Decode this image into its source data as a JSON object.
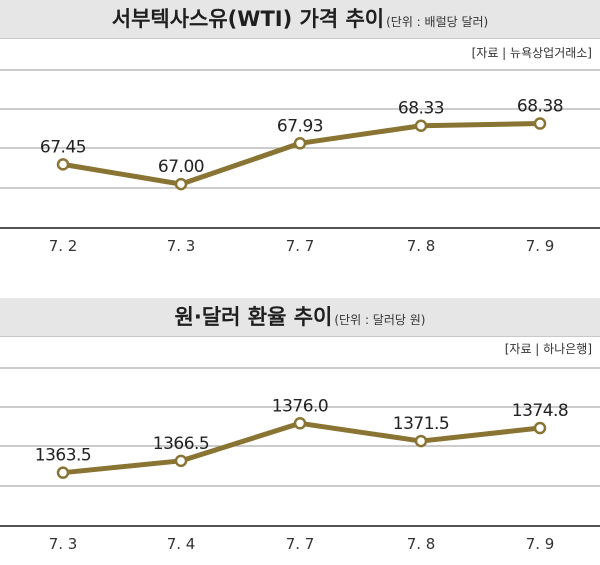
{
  "chart_data": [
    {
      "type": "line",
      "title": "서부텍사스유(WTI) 가격 추이",
      "subtitle": "(단위 : 배럴당 달러)",
      "source": "[자료 | 뉴욕상업거래소]",
      "categories": [
        "7. 2",
        "7. 3",
        "7. 7",
        "7. 8",
        "7. 9"
      ],
      "values": [
        67.45,
        67.0,
        67.93,
        68.33,
        68.38
      ],
      "labels": [
        "67.45",
        "67.00",
        "67.93",
        "68.33",
        "68.38"
      ],
      "ylim": [
        66.0,
        69.6
      ],
      "grid": true,
      "color": "#8a7433"
    },
    {
      "type": "line",
      "title": "원·달러 환율 추이",
      "subtitle": "(단위 : 달러당 원)",
      "source": "[자료 | 하나은행]",
      "categories": [
        "7. 3",
        "7. 4",
        "7. 7",
        "7. 8",
        "7. 9"
      ],
      "values": [
        1363.5,
        1366.5,
        1376.0,
        1371.5,
        1374.8
      ],
      "labels": [
        "1363.5",
        "1366.5",
        "1376.0",
        "1371.5",
        "1374.8"
      ],
      "ylim": [
        1350,
        1390
      ],
      "grid": true,
      "color": "#8a7433"
    }
  ]
}
